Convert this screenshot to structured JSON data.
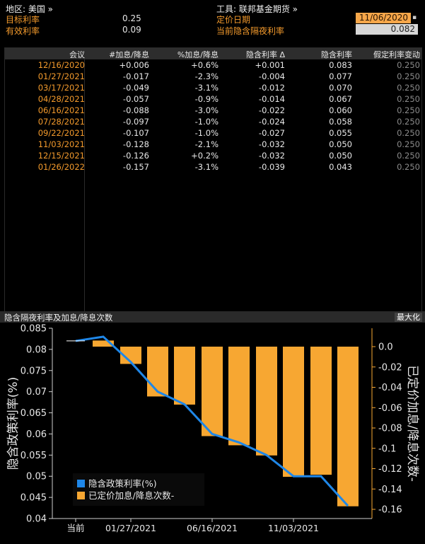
{
  "header": {
    "region_label": "地区: 美国 »",
    "target_rate_label": "目标利率",
    "target_rate_value": "0.25",
    "effective_rate_label": "有效利率",
    "effective_rate_value": "0.09",
    "instrument_label": "工具: 联邦基金期货 »",
    "pricing_date_label": "定价日期",
    "pricing_date_value": "11/06/2020",
    "implied_rate_label": "当前隐含隔夜利率",
    "implied_rate_value": "0.082"
  },
  "table": {
    "columns": [
      "会议",
      "#加息/降息",
      "%加息/降息",
      "隐含利率 Δ",
      "隐含利率",
      "假定利率变动"
    ],
    "rows": [
      [
        "12/16/2020",
        "+0.006",
        "+0.6%",
        "+0.001",
        "0.083",
        "0.250"
      ],
      [
        "01/27/2021",
        "-0.017",
        "-2.3%",
        "-0.004",
        "0.077",
        "0.250"
      ],
      [
        "03/17/2021",
        "-0.049",
        "-3.1%",
        "-0.012",
        "0.070",
        "0.250"
      ],
      [
        "04/28/2021",
        "-0.057",
        "-0.9%",
        "-0.014",
        "0.067",
        "0.250"
      ],
      [
        "06/16/2021",
        "-0.088",
        "-3.0%",
        "-0.022",
        "0.060",
        "0.250"
      ],
      [
        "07/28/2021",
        "-0.097",
        "-1.0%",
        "-0.024",
        "0.058",
        "0.250"
      ],
      [
        "09/22/2021",
        "-0.107",
        "-1.0%",
        "-0.027",
        "0.055",
        "0.250"
      ],
      [
        "11/03/2021",
        "-0.128",
        "-2.1%",
        "-0.032",
        "0.050",
        "0.250"
      ],
      [
        "12/15/2021",
        "-0.126",
        "+0.2%",
        "-0.032",
        "0.050",
        "0.250"
      ],
      [
        "01/26/2022",
        "-0.157",
        "-3.1%",
        "-0.039",
        "0.043",
        "0.250"
      ]
    ]
  },
  "chart_section": {
    "title": "隐含隔夜利率及加息/降息次数",
    "maximize_label": "最大化"
  },
  "colors": {
    "orange": "#f7a732",
    "blue": "#1f87e8",
    "background": "#000000"
  },
  "chart_data": {
    "type": "bar",
    "categories": [
      "当前",
      "12/16/2020",
      "01/27/2021",
      "03/17/2021",
      "04/28/2021",
      "06/16/2021",
      "07/28/2021",
      "09/22/2021",
      "11/03/2021",
      "12/15/2021",
      "01/26/2022"
    ],
    "x_tick_labels": [
      "当前",
      "01/27/2021",
      "06/16/2021",
      "11/03/2021"
    ],
    "ylabel_left": "隐含政策利率(%)",
    "ylabel_right": "已定价加息/降息次数-",
    "ylim_left": [
      0.04,
      0.085
    ],
    "yticks_left": [
      "0.04",
      "0.045",
      "0.05",
      "0.055",
      "0.06",
      "0.065",
      "0.07",
      "0.075",
      "0.08",
      "0.085"
    ],
    "ylim_right": [
      -0.16,
      0.0
    ],
    "yticks_right": [
      "0.0",
      "-0.02",
      "-0.04",
      "-0.06",
      "-0.08",
      "-0.1",
      "-0.12",
      "-0.14",
      "-0.16"
    ],
    "series": [
      {
        "name": "隐含政策利率(%)",
        "type": "line",
        "axis": "left",
        "values": [
          0.082,
          0.083,
          0.077,
          0.07,
          0.067,
          0.06,
          0.058,
          0.055,
          0.05,
          0.05,
          0.043
        ]
      },
      {
        "name": "已定价加息/降息次数-",
        "type": "bar",
        "axis": "right",
        "values": [
          null,
          0.006,
          -0.017,
          -0.049,
          -0.057,
          -0.088,
          -0.097,
          -0.107,
          -0.128,
          -0.126,
          -0.157
        ]
      }
    ],
    "legend_position": "bottom-left",
    "grid": false
  }
}
